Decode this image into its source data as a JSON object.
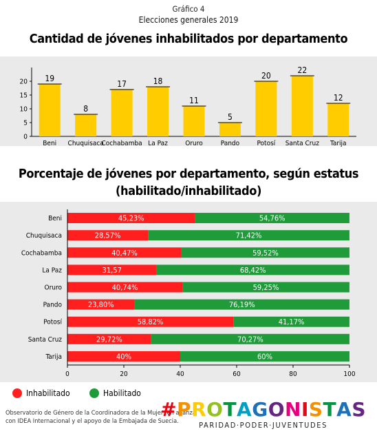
{
  "header": {
    "supertitle": "Gráfico 4",
    "subtitle": "Elecciones generales 2019"
  },
  "chart_data": [
    {
      "type": "bar",
      "title": "Cantidad de jóvenes inhabilitados por departamento",
      "categories": [
        "Beni",
        "Chuquisaca",
        "Cochabamba",
        "La Paz",
        "Oruro",
        "Pando",
        "Potosí",
        "Santa Cruz",
        "Tarija"
      ],
      "values": [
        19,
        8,
        17,
        18,
        11,
        5,
        20,
        22,
        12
      ],
      "data_labels": [
        "19",
        "8",
        "17",
        "18",
        "11",
        "5",
        "20",
        "22",
        "12"
      ],
      "ylim": [
        0,
        25
      ],
      "yticks": [
        "0",
        "5",
        "10",
        "15",
        "20"
      ],
      "xlabel": "",
      "ylabel": "",
      "color": "#ffcc00",
      "grid": false
    },
    {
      "type": "bar",
      "orientation": "horizontal",
      "stacked": true,
      "title": "Porcentaje de jóvenes por departamento, según estatus (habilitado/inhabilitado)",
      "title_lines": [
        "Porcentaje de jóvenes por departamento, según estatus",
        "(habilitado/inhabilitado)"
      ],
      "categories": [
        "Beni",
        "Chuquisaca",
        "Cochabamba",
        "La Paz",
        "Oruro",
        "Pando",
        "Potosí",
        "Santa Cruz",
        "Tarija"
      ],
      "series": [
        {
          "name": "Inhabilitado",
          "color": "#ff1f1f",
          "values": [
            45.23,
            28.57,
            40.47,
            31.57,
            40.74,
            23.8,
            58.82,
            29.72,
            40
          ],
          "labels": [
            "45,23%",
            "28,57%",
            "40,47%",
            "31,57",
            "40,74%",
            "23,80%",
            "58,82%",
            "29,72%",
            "40%"
          ]
        },
        {
          "name": "Habilitado",
          "color": "#1f9b3a",
          "values": [
            54.76,
            71.42,
            59.52,
            68.42,
            59.25,
            76.19,
            41.17,
            70.27,
            60
          ],
          "labels": [
            "54,76%",
            "71,42%",
            "59,52%",
            "68,42%",
            "59,25%",
            "76,19%",
            "41,17%",
            "70,27%",
            "60%"
          ]
        }
      ],
      "xlim": [
        0,
        100
      ],
      "xticks": [
        "0",
        "20",
        "40",
        "60",
        "80",
        "100"
      ],
      "legend": "bottom-left",
      "grid": false
    }
  ],
  "legend": {
    "items": [
      {
        "label": "Inhabilitado",
        "color": "#ff1f1f"
      },
      {
        "label": "Habilitado",
        "color": "#1f9b3a"
      }
    ]
  },
  "footer": {
    "line1": "Observatorio de Género de la Coordinadora de la Mujer, en alianza",
    "line2": "con IDEA Internacional y el apoyo de la Embajada de Suecia."
  },
  "brand": {
    "name": "#PROTAGONISTAS",
    "tagline": "PARIDAD·PODER·JUVENTUDES",
    "colors": [
      "#e30613",
      "#f39200",
      "#ffcc00",
      "#95c11f",
      "#009640",
      "#00a0c6",
      "#1d71b8",
      "#662483",
      "#e6007e",
      "#e30613",
      "#f39200",
      "#009640",
      "#1d71b8",
      "#662483"
    ]
  }
}
